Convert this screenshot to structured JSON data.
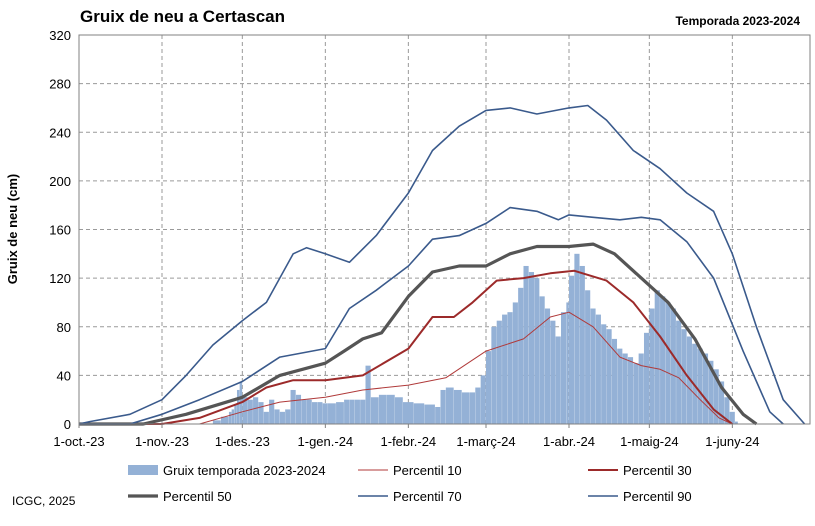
{
  "title": "Gruix de neu a Certascan",
  "season": "Temporada 2023-2024",
  "credit": "ICGC, 2025",
  "colors": {
    "bars": "#94b1d6",
    "p10": "#b03a3a",
    "p30": "#9c2a2a",
    "p50": "#555555",
    "p70": "#3a5a8c",
    "p90": "#3a5a8c",
    "grid": "#9a9a9a"
  },
  "chart_data": {
    "type": "bar",
    "ylabel": "Gruix de neu (cm)",
    "xlabel": "",
    "ylim": [
      0,
      320
    ],
    "yticks": [
      0,
      40,
      80,
      120,
      160,
      200,
      240,
      280,
      320
    ],
    "xlim": [
      "2023-10-01",
      "2024-06-30"
    ],
    "xticks": [
      {
        "label": "1-oct.-23",
        "date": "2023-10-01"
      },
      {
        "label": "1-nov.-23",
        "date": "2023-11-01"
      },
      {
        "label": "1-des.-23",
        "date": "2023-12-01"
      },
      {
        "label": "1-gen.-24",
        "date": "2024-01-01"
      },
      {
        "label": "1-febr.-24",
        "date": "2024-02-01"
      },
      {
        "label": "1-març-24",
        "date": "2024-03-01"
      },
      {
        "label": "1-abr.-24",
        "date": "2024-04-01"
      },
      {
        "label": "1-maig-24",
        "date": "2024-05-01"
      },
      {
        "label": "1-juny-24",
        "date": "2024-06-01"
      }
    ],
    "grid": true,
    "legend": "bottom",
    "series": [
      {
        "name": "Gruix temporada 2023-2024",
        "kind": "bar",
        "points": [
          [
            "2023-11-20",
            3
          ],
          [
            "2023-11-23",
            6
          ],
          [
            "2023-11-26",
            10
          ],
          [
            "2023-11-27",
            12
          ],
          [
            "2023-11-28",
            16
          ],
          [
            "2023-11-29",
            28
          ],
          [
            "2023-11-30",
            35
          ],
          [
            "2023-12-01",
            22
          ],
          [
            "2023-12-03",
            20
          ],
          [
            "2023-12-05",
            22
          ],
          [
            "2023-12-07",
            18
          ],
          [
            "2023-12-09",
            10
          ],
          [
            "2023-12-11",
            20
          ],
          [
            "2023-12-13",
            12
          ],
          [
            "2023-12-15",
            10
          ],
          [
            "2023-12-17",
            12
          ],
          [
            "2023-12-19",
            28
          ],
          [
            "2023-12-21",
            24
          ],
          [
            "2023-12-23",
            20
          ],
          [
            "2023-12-25",
            20
          ],
          [
            "2023-12-27",
            18
          ],
          [
            "2023-12-29",
            18
          ],
          [
            "2023-12-31",
            17
          ],
          [
            "2024-01-02",
            17
          ],
          [
            "2024-01-05",
            18
          ],
          [
            "2024-01-08",
            20
          ],
          [
            "2024-01-10",
            20
          ],
          [
            "2024-01-12",
            20
          ],
          [
            "2024-01-14",
            20
          ],
          [
            "2024-01-16",
            48
          ],
          [
            "2024-01-18",
            22
          ],
          [
            "2024-01-21",
            24
          ],
          [
            "2024-01-24",
            24
          ],
          [
            "2024-01-27",
            22
          ],
          [
            "2024-01-30",
            18
          ],
          [
            "2024-02-03",
            17
          ],
          [
            "2024-02-07",
            16
          ],
          [
            "2024-02-11",
            14
          ],
          [
            "2024-02-13",
            28
          ],
          [
            "2024-02-15",
            30
          ],
          [
            "2024-02-18",
            28
          ],
          [
            "2024-02-21",
            26
          ],
          [
            "2024-02-24",
            26
          ],
          [
            "2024-02-26",
            30
          ],
          [
            "2024-02-28",
            40
          ],
          [
            "2024-03-01",
            60
          ],
          [
            "2024-03-03",
            80
          ],
          [
            "2024-03-05",
            85
          ],
          [
            "2024-03-07",
            90
          ],
          [
            "2024-03-09",
            92
          ],
          [
            "2024-03-11",
            100
          ],
          [
            "2024-03-13",
            112
          ],
          [
            "2024-03-15",
            130
          ],
          [
            "2024-03-17",
            125
          ],
          [
            "2024-03-19",
            120
          ],
          [
            "2024-03-21",
            105
          ],
          [
            "2024-03-23",
            95
          ],
          [
            "2024-03-25",
            85
          ],
          [
            "2024-03-27",
            72
          ],
          [
            "2024-03-29",
            92
          ],
          [
            "2024-03-31",
            100
          ],
          [
            "2024-04-01",
            122
          ],
          [
            "2024-04-03",
            140
          ],
          [
            "2024-04-05",
            130
          ],
          [
            "2024-04-07",
            110
          ],
          [
            "2024-04-09",
            95
          ],
          [
            "2024-04-11",
            90
          ],
          [
            "2024-04-13",
            82
          ],
          [
            "2024-04-15",
            78
          ],
          [
            "2024-04-17",
            70
          ],
          [
            "2024-04-19",
            62
          ],
          [
            "2024-04-21",
            58
          ],
          [
            "2024-04-23",
            55
          ],
          [
            "2024-04-25",
            50
          ],
          [
            "2024-04-27",
            58
          ],
          [
            "2024-04-29",
            75
          ],
          [
            "2024-05-01",
            95
          ],
          [
            "2024-05-03",
            110
          ],
          [
            "2024-05-05",
            105
          ],
          [
            "2024-05-07",
            100
          ],
          [
            "2024-05-09",
            95
          ],
          [
            "2024-05-11",
            85
          ],
          [
            "2024-05-13",
            78
          ],
          [
            "2024-05-15",
            72
          ],
          [
            "2024-05-17",
            66
          ],
          [
            "2024-05-19",
            62
          ],
          [
            "2024-05-21",
            58
          ],
          [
            "2024-05-23",
            52
          ],
          [
            "2024-05-25",
            45
          ],
          [
            "2024-05-27",
            35
          ],
          [
            "2024-05-29",
            22
          ],
          [
            "2024-05-31",
            10
          ],
          [
            "2024-06-02",
            2
          ]
        ]
      },
      {
        "name": "Percentil 10",
        "kind": "line",
        "points": [
          [
            "2023-10-01",
            0
          ],
          [
            "2023-11-15",
            0
          ],
          [
            "2023-12-01",
            10
          ],
          [
            "2023-12-15",
            18
          ],
          [
            "2024-01-01",
            22
          ],
          [
            "2024-01-15",
            28
          ],
          [
            "2024-02-01",
            32
          ],
          [
            "2024-02-15",
            38
          ],
          [
            "2024-03-01",
            60
          ],
          [
            "2024-03-15",
            70
          ],
          [
            "2024-03-25",
            88
          ],
          [
            "2024-04-01",
            92
          ],
          [
            "2024-04-10",
            80
          ],
          [
            "2024-04-20",
            55
          ],
          [
            "2024-04-28",
            48
          ],
          [
            "2024-05-05",
            45
          ],
          [
            "2024-05-12",
            38
          ],
          [
            "2024-05-20",
            20
          ],
          [
            "2024-05-27",
            5
          ],
          [
            "2024-06-01",
            0
          ]
        ]
      },
      {
        "name": "Percentil 30",
        "kind": "line",
        "points": [
          [
            "2023-10-01",
            0
          ],
          [
            "2023-11-01",
            0
          ],
          [
            "2023-11-15",
            5
          ],
          [
            "2023-12-01",
            18
          ],
          [
            "2023-12-10",
            30
          ],
          [
            "2023-12-20",
            36
          ],
          [
            "2024-01-01",
            36
          ],
          [
            "2024-01-15",
            40
          ],
          [
            "2024-02-01",
            62
          ],
          [
            "2024-02-10",
            88
          ],
          [
            "2024-02-18",
            88
          ],
          [
            "2024-02-25",
            100
          ],
          [
            "2024-03-05",
            118
          ],
          [
            "2024-03-15",
            120
          ],
          [
            "2024-03-25",
            124
          ],
          [
            "2024-04-03",
            126
          ],
          [
            "2024-04-15",
            118
          ],
          [
            "2024-04-25",
            100
          ],
          [
            "2024-05-05",
            72
          ],
          [
            "2024-05-15",
            40
          ],
          [
            "2024-05-25",
            12
          ],
          [
            "2024-06-01",
            0
          ]
        ]
      },
      {
        "name": "Percentil 50",
        "kind": "line",
        "points": [
          [
            "2023-10-01",
            0
          ],
          [
            "2023-10-25",
            0
          ],
          [
            "2023-11-10",
            8
          ],
          [
            "2023-12-01",
            22
          ],
          [
            "2023-12-15",
            40
          ],
          [
            "2024-01-01",
            50
          ],
          [
            "2024-01-08",
            60
          ],
          [
            "2024-01-15",
            70
          ],
          [
            "2024-01-22",
            75
          ],
          [
            "2024-02-01",
            105
          ],
          [
            "2024-02-10",
            125
          ],
          [
            "2024-02-20",
            130
          ],
          [
            "2024-03-01",
            130
          ],
          [
            "2024-03-10",
            140
          ],
          [
            "2024-03-20",
            146
          ],
          [
            "2024-04-01",
            146
          ],
          [
            "2024-04-10",
            148
          ],
          [
            "2024-04-18",
            140
          ],
          [
            "2024-04-28",
            120
          ],
          [
            "2024-05-08",
            100
          ],
          [
            "2024-05-18",
            70
          ],
          [
            "2024-05-28",
            30
          ],
          [
            "2024-06-05",
            8
          ],
          [
            "2024-06-10",
            0
          ]
        ]
      },
      {
        "name": "Percentil 70",
        "kind": "line",
        "points": [
          [
            "2023-10-01",
            0
          ],
          [
            "2023-10-20",
            0
          ],
          [
            "2023-11-01",
            8
          ],
          [
            "2023-11-15",
            20
          ],
          [
            "2023-12-01",
            35
          ],
          [
            "2023-12-15",
            55
          ],
          [
            "2024-01-01",
            62
          ],
          [
            "2024-01-10",
            95
          ],
          [
            "2024-01-20",
            110
          ],
          [
            "2024-02-01",
            130
          ],
          [
            "2024-02-10",
            152
          ],
          [
            "2024-02-20",
            155
          ],
          [
            "2024-03-01",
            165
          ],
          [
            "2024-03-10",
            178
          ],
          [
            "2024-03-20",
            175
          ],
          [
            "2024-03-28",
            168
          ],
          [
            "2024-04-01",
            172
          ],
          [
            "2024-04-10",
            170
          ],
          [
            "2024-04-20",
            168
          ],
          [
            "2024-04-28",
            170
          ],
          [
            "2024-05-05",
            168
          ],
          [
            "2024-05-15",
            150
          ],
          [
            "2024-05-25",
            120
          ],
          [
            "2024-06-05",
            60
          ],
          [
            "2024-06-15",
            10
          ],
          [
            "2024-06-20",
            0
          ]
        ]
      },
      {
        "name": "Percentil 90",
        "kind": "line",
        "points": [
          [
            "2023-10-01",
            0
          ],
          [
            "2023-10-05",
            2
          ],
          [
            "2023-10-20",
            8
          ],
          [
            "2023-11-01",
            20
          ],
          [
            "2023-11-10",
            40
          ],
          [
            "2023-11-20",
            65
          ],
          [
            "2023-12-01",
            85
          ],
          [
            "2023-12-10",
            100
          ],
          [
            "2023-12-20",
            140
          ],
          [
            "2023-12-25",
            145
          ],
          [
            "2024-01-01",
            140
          ],
          [
            "2024-01-10",
            133
          ],
          [
            "2024-01-20",
            155
          ],
          [
            "2024-02-01",
            190
          ],
          [
            "2024-02-10",
            225
          ],
          [
            "2024-02-20",
            245
          ],
          [
            "2024-03-01",
            258
          ],
          [
            "2024-03-10",
            260
          ],
          [
            "2024-03-20",
            255
          ],
          [
            "2024-04-01",
            260
          ],
          [
            "2024-04-08",
            262
          ],
          [
            "2024-04-15",
            250
          ],
          [
            "2024-04-25",
            225
          ],
          [
            "2024-05-05",
            210
          ],
          [
            "2024-05-15",
            190
          ],
          [
            "2024-05-25",
            175
          ],
          [
            "2024-06-01",
            140
          ],
          [
            "2024-06-10",
            80
          ],
          [
            "2024-06-20",
            20
          ],
          [
            "2024-06-28",
            0
          ]
        ]
      }
    ]
  }
}
